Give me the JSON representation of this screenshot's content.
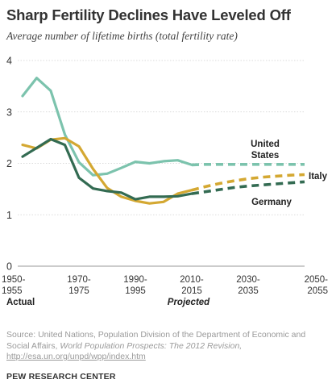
{
  "title": "Sharp Fertility Declines Have Leveled Off",
  "subtitle": "Average number of lifetime births (total fertility rate)",
  "chart_data": {
    "type": "line",
    "title": "Sharp Fertility Declines Have Leveled Off",
    "subtitle": "Average number of lifetime births (total fertility rate)",
    "xlabel": "",
    "ylabel": "",
    "ylim": [
      0,
      4
    ],
    "yticks": [
      "0",
      "1",
      "2",
      "3",
      "4"
    ],
    "xticks": [
      {
        "top": "1950-",
        "bottom": "1955"
      },
      {
        "top": "1970-",
        "bottom": "1975"
      },
      {
        "top": "1990-",
        "bottom": "1995"
      },
      {
        "top": "2010-",
        "bottom": "2015"
      },
      {
        "top": "2030-",
        "bottom": "2035"
      },
      {
        "top": "2050-",
        "bottom": "2055"
      }
    ],
    "x": [
      "1950-1955",
      "1955-1960",
      "1960-1965",
      "1965-1970",
      "1970-1975",
      "1975-1980",
      "1980-1985",
      "1985-1990",
      "1990-1995",
      "1995-2000",
      "2000-2005",
      "2005-2010",
      "2010-2015",
      "2015-2020",
      "2020-2025",
      "2025-2030",
      "2030-2035",
      "2035-2040",
      "2040-2045",
      "2045-2050",
      "2050-2055"
    ],
    "projection_start": "2010-2015",
    "annotations": {
      "actual": "Actual",
      "projected": "Projected"
    },
    "grid": true,
    "series": [
      {
        "name": "United States",
        "label_lines": [
          "United",
          "States"
        ],
        "color": "#7cc3ad",
        "values": [
          3.31,
          3.66,
          3.41,
          2.56,
          2.02,
          1.77,
          1.8,
          1.91,
          2.03,
          2.0,
          2.04,
          2.06,
          1.97,
          1.98,
          1.98,
          1.98,
          1.98,
          1.98,
          1.98,
          1.98,
          1.98
        ]
      },
      {
        "name": "Italy",
        "label_lines": [
          "Italy"
        ],
        "color": "#d4a832",
        "values": [
          2.36,
          2.29,
          2.46,
          2.49,
          2.33,
          1.89,
          1.52,
          1.35,
          1.27,
          1.22,
          1.25,
          1.41,
          1.48,
          1.55,
          1.61,
          1.66,
          1.7,
          1.73,
          1.75,
          1.77,
          1.78
        ]
      },
      {
        "name": "Germany",
        "label_lines": [
          "Germany"
        ],
        "color": "#336b52",
        "values": [
          2.13,
          2.3,
          2.47,
          2.36,
          1.72,
          1.51,
          1.46,
          1.43,
          1.3,
          1.35,
          1.35,
          1.36,
          1.41,
          1.45,
          1.49,
          1.53,
          1.56,
          1.58,
          1.6,
          1.62,
          1.64
        ]
      }
    ]
  },
  "footer": {
    "source_prefix": "Source: United Nations, Population Division of the Department of Economic and Social Affairs,",
    "source_publication": "World Population Prospects: The 2012 Revision,",
    "source_url": "http://esa.un.org/unpd/wpp/index.htm",
    "brand": "PEW RESEARCH CENTER"
  }
}
